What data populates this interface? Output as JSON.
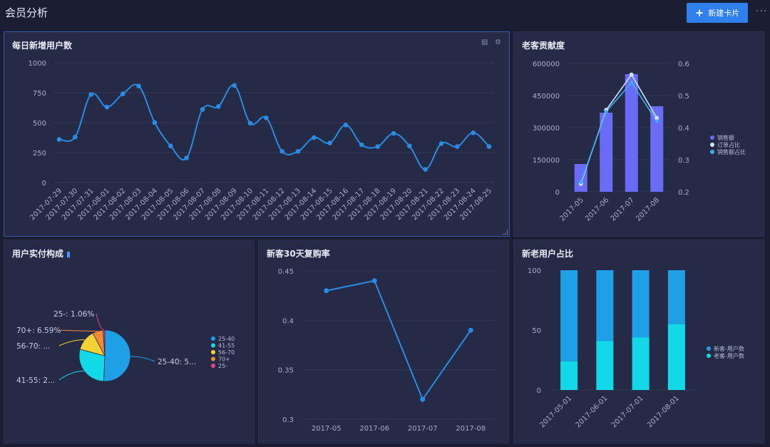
{
  "header": {
    "title": "会员分析",
    "new_card_label": "新建卡片",
    "more_label": "···"
  },
  "colors": {
    "bg": "#1b1e33",
    "card": "#252a47",
    "line_blue": "#2b8be0",
    "bar_purple": "#6a6cf6",
    "cyan": "#12d8e8",
    "blue": "#1e9fe6",
    "yellow": "#f5d233",
    "orange": "#f28a3c",
    "pink": "#e8458a"
  },
  "cards": {
    "daily_new_users": {
      "title": "每日新增用户数"
    },
    "old_customer_contribution": {
      "title": "老客贡献度"
    },
    "actual_payment": {
      "title": "用户实付构成"
    },
    "repurchase": {
      "title": "新客30天复购率"
    },
    "new_old_ratio": {
      "title": "新老用户占比"
    }
  },
  "chart_data": [
    {
      "id": "daily_new_users",
      "type": "line",
      "title": "每日新增用户数",
      "x": [
        "2017-07-29",
        "2017-07-30",
        "2017-07-31",
        "2017-08-01",
        "2017-08-02",
        "2017-08-03",
        "2017-08-04",
        "2017-08-05",
        "2017-08-06",
        "2017-08-07",
        "2017-08-08",
        "2017-08-09",
        "2017-08-10",
        "2017-08-11",
        "2017-08-12",
        "2017-08-13",
        "2017-08-14",
        "2017-08-15",
        "2017-08-16",
        "2017-08-17",
        "2017-08-18",
        "2017-08-19",
        "2017-08-20",
        "2017-08-21",
        "2017-08-22",
        "2017-08-23",
        "2017-08-24",
        "2017-08-25"
      ],
      "values": [
        360,
        380,
        735,
        630,
        740,
        805,
        500,
        305,
        205,
        610,
        635,
        810,
        495,
        540,
        260,
        260,
        375,
        330,
        480,
        315,
        300,
        410,
        305,
        110,
        325,
        300,
        415,
        300
      ],
      "ylim": [
        0,
        1000
      ],
      "yticks": [
        "0",
        "250",
        "500",
        "750",
        "1000"
      ],
      "grid": true
    },
    {
      "id": "old_customer_contribution",
      "type": "bar",
      "title": "老客贡献度",
      "categories": [
        "2017-05",
        "2017-06",
        "2017-07",
        "2017-08"
      ],
      "series": [
        {
          "name": "销售额",
          "type": "bar",
          "values": [
            130000,
            370000,
            550000,
            400000
          ]
        },
        {
          "name": "订单占比",
          "type": "line",
          "values": [
            0.225,
            0.455,
            0.565,
            0.43
          ]
        },
        {
          "name": "销售额占比",
          "type": "line",
          "values": [
            0.23,
            0.45,
            0.54,
            0.42
          ]
        }
      ],
      "ylim_left": [
        0,
        600000
      ],
      "yticks_left": [
        "0",
        "150000",
        "300000",
        "450000",
        "600000"
      ],
      "ylim_right": [
        0.2,
        0.6
      ],
      "yticks_right": [
        "0.2",
        "0.3",
        "0.4",
        "0.5",
        "0.6"
      ],
      "legend": "right"
    },
    {
      "id": "actual_payment",
      "type": "pie",
      "title": "用户实付构成",
      "slices": [
        {
          "name": "25-40",
          "value": 50,
          "label": "25-40: 5..."
        },
        {
          "name": "41-55",
          "value": 28,
          "label": "41-55: 2..."
        },
        {
          "name": "56-70",
          "value": 13,
          "label": "56-70: ..."
        },
        {
          "name": "70+",
          "value": 6.59,
          "label": "70+: 6.59%"
        },
        {
          "name": "25-",
          "value": 1.06,
          "label": "25-: 1.06%"
        }
      ],
      "legend": "right"
    },
    {
      "id": "repurchase",
      "type": "line",
      "title": "新客30天复购率",
      "x": [
        "2017-05",
        "2017-06",
        "2017-07",
        "2017-08"
      ],
      "values": [
        0.43,
        0.44,
        0.32,
        0.39
      ],
      "ylim": [
        0.3,
        0.45
      ],
      "yticks": [
        "0.3",
        "0.35",
        "0.4",
        "0.45"
      ]
    },
    {
      "id": "new_old_ratio",
      "type": "bar",
      "title": "新老用户占比",
      "categories": [
        "2017-05-01",
        "2017-06-01",
        "2017-07-01",
        "2017-08-01"
      ],
      "series": [
        {
          "name": "新客-用户数",
          "values": [
            76,
            59,
            56,
            45
          ]
        },
        {
          "name": "老客-用户数",
          "values": [
            24,
            41,
            44,
            55
          ]
        }
      ],
      "stacked": true,
      "ylim": [
        0,
        100
      ],
      "yticks": [
        "0",
        "50",
        "100"
      ],
      "legend": "right"
    }
  ]
}
